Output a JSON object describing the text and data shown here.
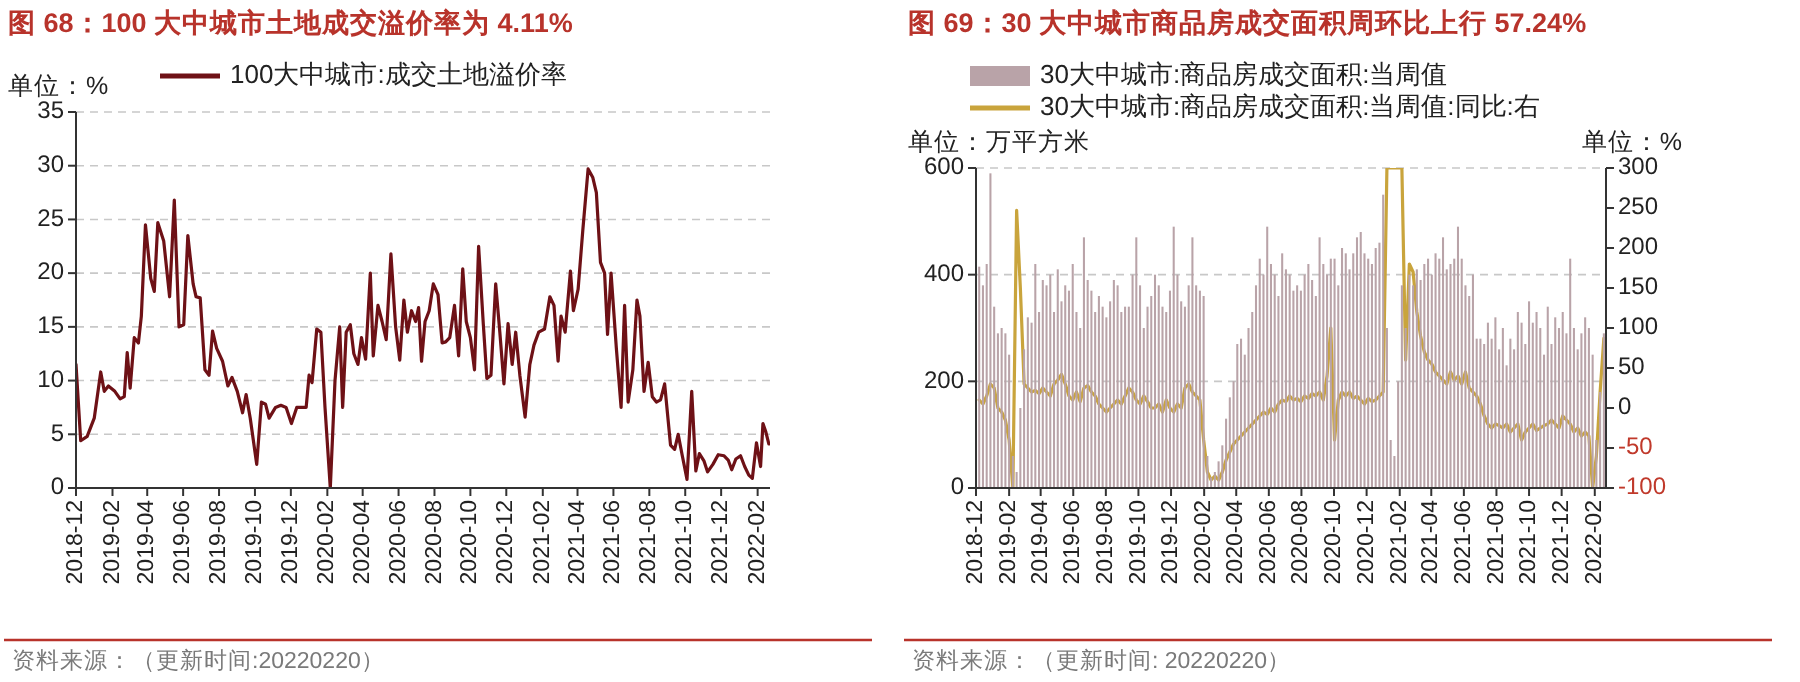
{
  "chart_data": [
    {
      "type": "line",
      "title": "图 68：100 大中城市土地成交溢价率为 4.11%",
      "ylabel": "单位：%",
      "legend": "top",
      "grid": "y",
      "xlim": [
        "2018-12-01",
        "2022-02-22"
      ],
      "xticks": [
        "2018-12",
        "2019-02",
        "2019-04",
        "2019-06",
        "2019-08",
        "2019-10",
        "2019-12",
        "2020-02",
        "2020-04",
        "2020-06",
        "2020-08",
        "2020-10",
        "2020-12",
        "2021-02",
        "2021-04",
        "2021-06",
        "2021-08",
        "2021-10",
        "2021-12",
        "2022-02"
      ],
      "ylim": [
        0,
        35
      ],
      "yticks": [
        0,
        5,
        10,
        15,
        20,
        25,
        30,
        35
      ],
      "series": [
        {
          "name": "100大中城市:成交土地溢价率",
          "color": "#6e1116",
          "x": [
            "2018-12-01",
            "2018-12-09",
            "2018-12-20",
            "2019-01-01",
            "2019-01-12",
            "2019-01-18",
            "2019-01-25",
            "2019-02-05",
            "2019-02-14",
            "2019-02-21",
            "2019-02-26",
            "2019-03-03",
            "2019-03-10",
            "2019-03-17",
            "2019-03-22",
            "2019-03-29",
            "2019-04-07",
            "2019-04-13",
            "2019-04-19",
            "2019-04-29",
            "2019-05-09",
            "2019-05-17",
            "2019-05-25",
            "2019-06-02",
            "2019-06-09",
            "2019-06-18",
            "2019-06-23",
            "2019-06-30",
            "2019-07-08",
            "2019-07-15",
            "2019-07-21",
            "2019-07-28",
            "2019-08-07",
            "2019-08-16",
            "2019-08-23",
            "2019-09-01",
            "2019-09-10",
            "2019-09-16",
            "2019-09-23",
            "2019-10-04",
            "2019-10-12",
            "2019-10-19",
            "2019-10-25",
            "2019-11-05",
            "2019-11-14",
            "2019-11-23",
            "2019-12-02",
            "2019-12-11",
            "2019-12-20",
            "2019-12-27",
            "2020-01-01",
            "2020-01-06",
            "2020-01-14",
            "2020-01-21",
            "2020-01-28",
            "2020-02-06",
            "2020-02-14",
            "2020-02-22",
            "2020-02-27",
            "2020-03-04",
            "2020-03-11",
            "2020-03-17",
            "2020-03-24",
            "2020-03-30",
            "2020-04-06",
            "2020-04-14",
            "2020-04-19",
            "2020-04-27",
            "2020-05-04",
            "2020-05-11",
            "2020-05-19",
            "2020-05-27",
            "2020-06-03",
            "2020-06-10",
            "2020-06-16",
            "2020-06-23",
            "2020-06-30",
            "2020-07-05",
            "2020-07-10",
            "2020-07-16",
            "2020-07-23",
            "2020-07-30",
            "2020-08-07",
            "2020-08-14",
            "2020-08-20",
            "2020-08-27",
            "2020-09-04",
            "2020-09-11",
            "2020-09-18",
            "2020-09-24",
            "2020-10-01",
            "2020-10-08",
            "2020-10-15",
            "2020-10-23",
            "2020-10-29",
            "2020-11-05",
            "2020-11-13",
            "2020-11-20",
            "2020-11-27",
            "2020-12-04",
            "2020-12-11",
            "2020-12-17",
            "2020-12-24",
            "2021-01-02",
            "2021-01-10",
            "2021-01-17",
            "2021-01-25",
            "2021-02-04",
            "2021-02-13",
            "2021-02-20",
            "2021-02-27",
            "2021-03-04",
            "2021-03-11",
            "2021-03-20",
            "2021-03-25",
            "2021-04-02",
            "2021-04-10",
            "2021-04-19",
            "2021-04-27",
            "2021-05-03",
            "2021-05-10",
            "2021-05-17",
            "2021-05-22",
            "2021-05-28",
            "2021-06-06",
            "2021-06-14",
            "2021-06-20",
            "2021-06-26",
            "2021-07-04",
            "2021-07-11",
            "2021-07-16",
            "2021-07-23",
            "2021-07-30",
            "2021-08-06",
            "2021-08-13",
            "2021-08-20",
            "2021-08-27",
            "2021-09-06",
            "2021-09-13",
            "2021-09-19",
            "2021-09-26",
            "2021-10-04",
            "2021-10-12",
            "2021-10-19",
            "2021-10-25",
            "2021-11-02",
            "2021-11-08",
            "2021-11-17",
            "2021-11-26",
            "2021-12-06",
            "2021-12-13",
            "2021-12-19",
            "2021-12-26",
            "2022-01-03",
            "2022-01-10",
            "2022-01-17",
            "2022-01-23",
            "2022-01-30",
            "2022-02-06",
            "2022-02-10",
            "2022-02-15",
            "2022-02-20"
          ],
          "values": [
            11.5,
            4.4,
            4.8,
            6.5,
            10.8,
            9,
            9.5,
            9,
            8.3,
            8.5,
            12.6,
            9.3,
            14,
            13.5,
            16,
            24.5,
            19.5,
            18.3,
            24.7,
            23,
            17.8,
            26.8,
            15,
            15.2,
            23.5,
            19,
            17.8,
            17.7,
            11,
            10.5,
            14.6,
            13,
            11.8,
            9.5,
            10.3,
            9,
            7,
            8.7,
            6.5,
            2.2,
            8,
            7.8,
            6.5,
            7.5,
            7.7,
            7.5,
            6,
            7.5,
            7.5,
            7.5,
            10.5,
            9.8,
            14.8,
            14.5,
            7.5,
            0,
            10,
            15,
            7.5,
            14.5,
            15.2,
            12.5,
            11.5,
            14,
            12,
            20,
            12.3,
            17,
            15.5,
            13.8,
            21.8,
            15,
            11.9,
            17.5,
            14.5,
            16.5,
            15.5,
            16.8,
            11.8,
            15.5,
            16.5,
            19,
            18,
            13.5,
            13.6,
            14,
            17,
            12.3,
            20.4,
            15.5,
            14,
            11,
            22.5,
            15.2,
            10.2,
            10.5,
            19,
            14.5,
            9.7,
            15.3,
            11.5,
            14.5,
            10.5,
            6.6,
            11.5,
            13.3,
            14.5,
            14.8,
            17.8,
            17,
            11.8,
            16,
            14.5,
            20.2,
            16.5,
            18.5,
            24,
            29.7,
            28.9,
            27.5,
            21,
            20,
            14.3,
            20,
            13,
            7.5,
            17,
            8,
            11,
            17.5,
            16,
            9,
            11.7,
            8.5,
            8,
            8.2,
            9.7,
            4,
            3.6,
            5,
            3,
            0.8,
            9,
            1.6,
            3.2,
            2.5,
            1.5,
            2.2,
            3.1,
            3,
            2.6,
            1.7,
            2.7,
            3,
            2,
            1.2,
            0.9,
            4.2,
            2,
            6,
            5.2,
            4.1
          ]
        }
      ],
      "annotations": [
        "资料来源：（更新时间:20220220）"
      ]
    },
    {
      "type": "bar",
      "title": "图 69：30 大中城市商品房成交面积周环比上行 57.24%",
      "ylabel": "单位：万平方米",
      "y2label": "单位：%",
      "legend": "top",
      "grid": "y",
      "xlim": [
        "2018-12-01",
        "2022-02-22"
      ],
      "xticks": [
        "2018-12",
        "2019-02",
        "2019-04",
        "2019-06",
        "2019-08",
        "2019-10",
        "2019-12",
        "2020-02",
        "2020-04",
        "2020-06",
        "2020-08",
        "2020-10",
        "2020-12",
        "2021-02",
        "2021-04",
        "2021-06",
        "2021-08",
        "2021-10",
        "2021-12",
        "2022-02"
      ],
      "ylim": [
        0,
        600
      ],
      "yticks": [
        0,
        200,
        400,
        600
      ],
      "y2lim": [
        -100,
        300
      ],
      "y2ticks": [
        -100,
        -50,
        0,
        50,
        100,
        150,
        200,
        250,
        300
      ],
      "x": [
        "2018-12-07",
        "2018-12-14",
        "2018-12-21",
        "2018-12-28",
        "2019-01-04",
        "2019-01-11",
        "2019-01-18",
        "2019-01-25",
        "2019-02-01",
        "2019-02-08",
        "2019-02-15",
        "2019-02-22",
        "2019-03-01",
        "2019-03-08",
        "2019-03-15",
        "2019-03-22",
        "2019-03-29",
        "2019-04-05",
        "2019-04-12",
        "2019-04-19",
        "2019-04-26",
        "2019-05-03",
        "2019-05-10",
        "2019-05-17",
        "2019-05-24",
        "2019-05-31",
        "2019-06-07",
        "2019-06-14",
        "2019-06-21",
        "2019-06-28",
        "2019-07-05",
        "2019-07-12",
        "2019-07-19",
        "2019-07-26",
        "2019-08-02",
        "2019-08-09",
        "2019-08-16",
        "2019-08-23",
        "2019-08-30",
        "2019-09-06",
        "2019-09-13",
        "2019-09-20",
        "2019-09-27",
        "2019-10-04",
        "2019-10-11",
        "2019-10-18",
        "2019-10-25",
        "2019-11-01",
        "2019-11-08",
        "2019-11-15",
        "2019-11-22",
        "2019-11-29",
        "2019-12-06",
        "2019-12-13",
        "2019-12-20",
        "2019-12-27",
        "2020-01-03",
        "2020-01-10",
        "2020-01-17",
        "2020-01-24",
        "2020-01-31",
        "2020-02-07",
        "2020-02-14",
        "2020-02-21",
        "2020-02-28",
        "2020-03-06",
        "2020-03-13",
        "2020-03-20",
        "2020-03-27",
        "2020-04-03",
        "2020-04-10",
        "2020-04-17",
        "2020-04-24",
        "2020-05-01",
        "2020-05-08",
        "2020-05-15",
        "2020-05-22",
        "2020-05-29",
        "2020-06-05",
        "2020-06-12",
        "2020-06-19",
        "2020-06-26",
        "2020-07-03",
        "2020-07-10",
        "2020-07-17",
        "2020-07-24",
        "2020-07-31",
        "2020-08-07",
        "2020-08-14",
        "2020-08-21",
        "2020-08-28",
        "2020-09-04",
        "2020-09-11",
        "2020-09-18",
        "2020-09-25",
        "2020-10-02",
        "2020-10-09",
        "2020-10-16",
        "2020-10-23",
        "2020-10-30",
        "2020-11-06",
        "2020-11-13",
        "2020-11-20",
        "2020-11-27",
        "2020-12-04",
        "2020-12-11",
        "2020-12-18",
        "2020-12-25",
        "2021-01-01",
        "2021-01-08",
        "2021-01-15",
        "2021-01-22",
        "2021-01-29",
        "2021-02-05",
        "2021-02-12",
        "2021-02-19",
        "2021-02-26",
        "2021-03-05",
        "2021-03-12",
        "2021-03-19",
        "2021-03-26",
        "2021-04-02",
        "2021-04-09",
        "2021-04-16",
        "2021-04-23",
        "2021-04-30",
        "2021-05-07",
        "2021-05-14",
        "2021-05-21",
        "2021-05-28",
        "2021-06-04",
        "2021-06-11",
        "2021-06-18",
        "2021-06-25",
        "2021-07-02",
        "2021-07-09",
        "2021-07-16",
        "2021-07-23",
        "2021-07-30",
        "2021-08-06",
        "2021-08-13",
        "2021-08-20",
        "2021-08-27",
        "2021-09-03",
        "2021-09-10",
        "2021-09-17",
        "2021-09-24",
        "2021-10-01",
        "2021-10-08",
        "2021-10-15",
        "2021-10-22",
        "2021-10-29",
        "2021-11-05",
        "2021-11-12",
        "2021-11-19",
        "2021-11-26",
        "2021-12-03",
        "2021-12-10",
        "2021-12-17",
        "2021-12-24",
        "2021-12-31",
        "2022-01-07",
        "2022-01-14",
        "2022-01-21",
        "2022-01-28",
        "2022-02-04",
        "2022-02-11",
        "2022-02-18"
      ],
      "series": [
        {
          "type": "bar",
          "name": "30大中城市:商品房成交面积:当周值",
          "color": "#b9a3a8",
          "values": [
            415,
            380,
            420,
            590,
            340,
            290,
            300,
            290,
            250,
            60,
            30,
            150,
            260,
            320,
            310,
            420,
            330,
            390,
            380,
            400,
            330,
            410,
            350,
            380,
            370,
            420,
            330,
            300,
            470,
            390,
            370,
            330,
            360,
            340,
            320,
            350,
            390,
            380,
            330,
            340,
            340,
            400,
            470,
            380,
            300,
            340,
            360,
            400,
            380,
            340,
            330,
            370,
            490,
            400,
            350,
            340,
            380,
            470,
            380,
            370,
            360,
            60,
            20,
            30,
            50,
            80,
            130,
            170,
            200,
            270,
            280,
            250,
            300,
            330,
            380,
            430,
            400,
            490,
            420,
            400,
            360,
            440,
            410,
            400,
            370,
            380,
            370,
            400,
            420,
            390,
            360,
            470,
            420,
            400,
            430,
            430,
            380,
            450,
            440,
            410,
            440,
            470,
            480,
            440,
            430,
            420,
            450,
            460,
            550,
            300,
            90,
            60,
            200,
            380,
            300,
            400,
            380,
            410,
            390,
            420,
            430,
            400,
            440,
            430,
            470,
            410,
            420,
            430,
            490,
            430,
            380,
            360,
            400,
            280,
            280,
            270,
            310,
            280,
            320,
            260,
            300,
            230,
            280,
            260,
            330,
            310,
            270,
            350,
            310,
            330,
            300,
            250,
            340,
            270,
            320,
            300,
            330,
            290,
            430,
            300,
            260,
            290,
            320,
            300,
            250,
            90,
            180,
            290
          ]
        },
        {
          "type": "line",
          "axis": "y2",
          "name": "30大中城市:商品房成交面积:当周值:同比:右",
          "color": "#c9a43c",
          "values": [
            10,
            5,
            15,
            30,
            25,
            0,
            -5,
            -15,
            -40,
            -100,
            247,
            150,
            30,
            25,
            20,
            22,
            18,
            25,
            20,
            15,
            30,
            35,
            42,
            30,
            15,
            10,
            20,
            8,
            25,
            28,
            20,
            15,
            5,
            0,
            -5,
            0,
            5,
            10,
            5,
            15,
            25,
            20,
            10,
            5,
            15,
            8,
            0,
            0,
            5,
            -5,
            10,
            0,
            -5,
            5,
            0,
            25,
            30,
            20,
            15,
            10,
            -40,
            -80,
            -90,
            -85,
            -90,
            -80,
            -65,
            -55,
            -45,
            -40,
            -35,
            -30,
            -25,
            -20,
            -15,
            -10,
            -5,
            -8,
            0,
            -5,
            5,
            10,
            8,
            15,
            10,
            12,
            8,
            15,
            12,
            18,
            15,
            20,
            10,
            40,
            100,
            -40,
            10,
            20,
            15,
            20,
            12,
            15,
            10,
            5,
            12,
            8,
            10,
            15,
            20,
            300,
            300,
            300,
            300,
            300,
            60,
            180,
            170,
            120,
            90,
            70,
            60,
            55,
            45,
            40,
            35,
            30,
            45,
            35,
            40,
            30,
            45,
            25,
            20,
            15,
            5,
            -10,
            -20,
            -25,
            -20,
            -22,
            -25,
            -20,
            -30,
            -25,
            -20,
            -40,
            -30,
            -25,
            -20,
            -28,
            -25,
            -22,
            -20,
            -15,
            -20,
            -25,
            -10,
            -15,
            -20,
            -30,
            -25,
            -35,
            -30,
            -35,
            -100,
            -60,
            20,
            87
          ]
        }
      ],
      "annotations": [
        "资料来源：（更新时间: 20220220）"
      ]
    }
  ]
}
